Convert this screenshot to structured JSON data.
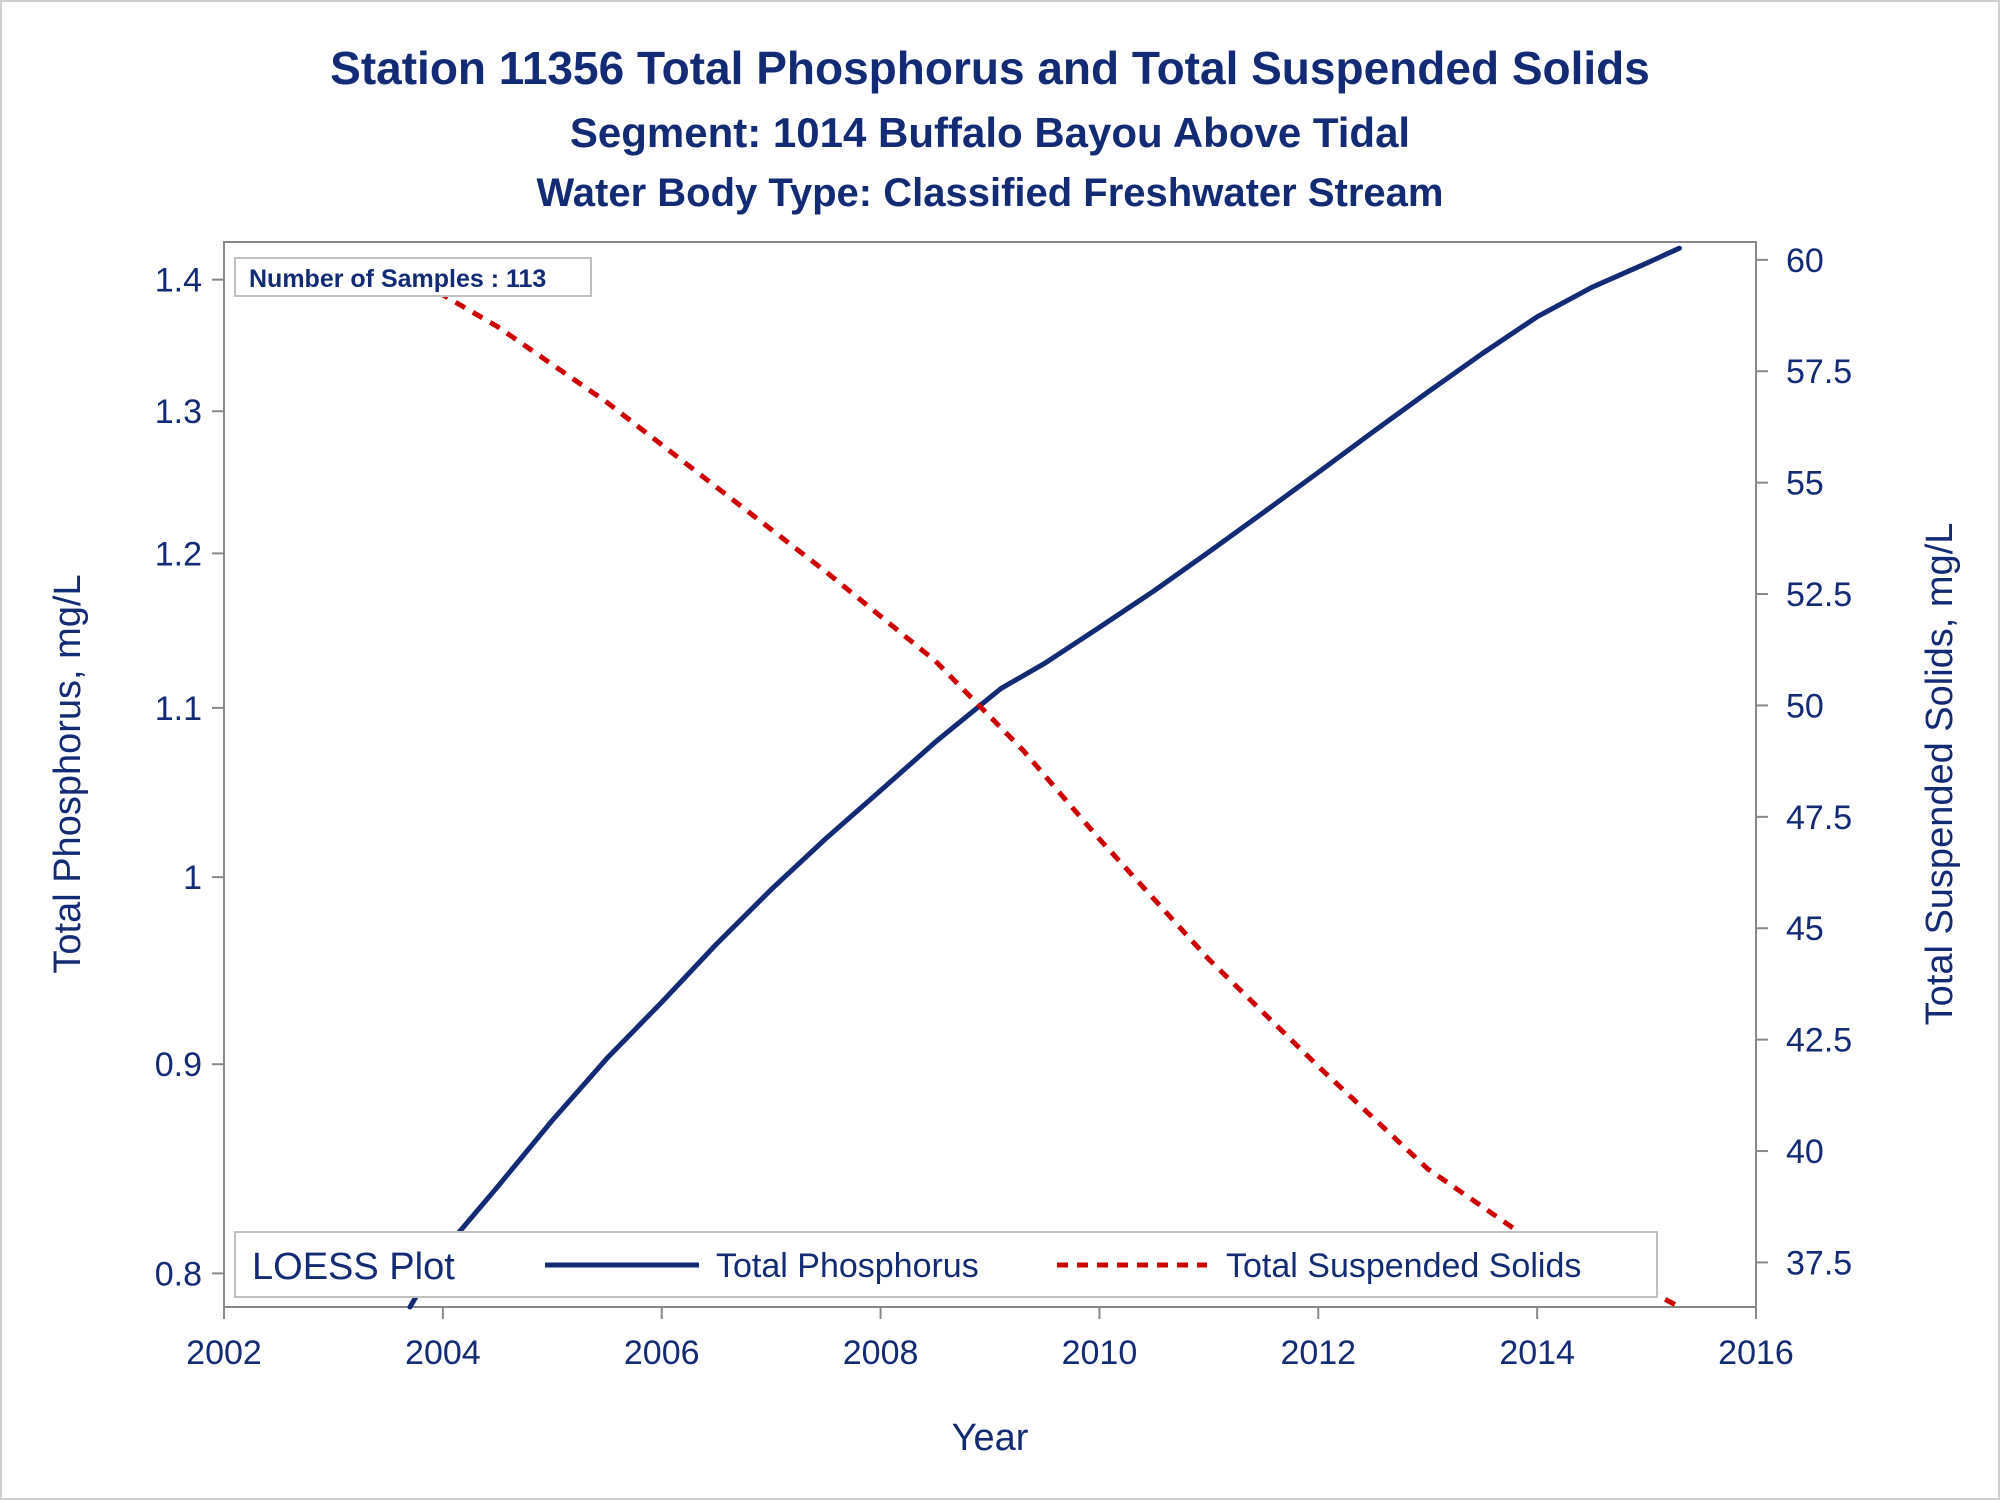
{
  "chart_data": {
    "type": "line",
    "title": "Station 11356  Total Phosphorus and Total Suspended Solids",
    "subtitle": "Segment: 1014  Buffalo Bayou Above Tidal",
    "subtitle2": "Water Body Type: Classified Freshwater Stream",
    "xlabel": "Year",
    "ylabel": "Total Phosphorus, mg/L",
    "y2label": "Total Suspended Solids, mg/L",
    "xlim": [
      2002,
      2016
    ],
    "xticks": [
      2002,
      2004,
      2006,
      2008,
      2010,
      2012,
      2014,
      2016
    ],
    "ylim": [
      0.785,
      1.43
    ],
    "y_scale": "log",
    "yticks": [
      0.8,
      0.9,
      1,
      1.1,
      1.2,
      1.3,
      1.4
    ],
    "y2lim": [
      36.5,
      60.4
    ],
    "y2ticks": [
      37.5,
      40,
      42.5,
      45,
      47.5,
      50,
      52.5,
      55,
      57.5,
      60
    ],
    "inset_text": "Number of Samples : 113",
    "legend_title": "LOESS Plot",
    "legend_position": "bottom-inside",
    "grid": false,
    "series": [
      {
        "name": "Total Phosphorus",
        "axis": "left",
        "color": "#122b74",
        "style": "solid",
        "x": [
          2003.7,
          2004,
          2004.5,
          2005,
          2005.5,
          2006,
          2006.5,
          2007,
          2007.5,
          2008,
          2008.5,
          2009.1,
          2009.5,
          2010,
          2010.5,
          2011,
          2011.5,
          2012,
          2012.5,
          2013,
          2013.5,
          2014,
          2014.5,
          2015,
          2015.3
        ],
        "y": [
          0.785,
          0.81,
          0.84,
          0.872,
          0.903,
          0.932,
          0.963,
          0.993,
          1.022,
          1.05,
          1.079,
          1.112,
          1.128,
          1.151,
          1.175,
          1.201,
          1.228,
          1.256,
          1.285,
          1.314,
          1.343,
          1.371,
          1.394,
          1.413,
          1.425
        ]
      },
      {
        "name": "Total Suspended Solids",
        "axis": "right",
        "color": "#cc0000",
        "style": "dashed",
        "x": [
          2003.8,
          2004.5,
          2005.5,
          2006.5,
          2007.5,
          2008.5,
          2009.3,
          2010,
          2011,
          2012,
          2013,
          2014,
          2015,
          2015.3
        ],
        "y": [
          59.5,
          58.5,
          56.8,
          54.9,
          53.0,
          51.0,
          49.0,
          47.0,
          44.3,
          41.9,
          39.6,
          37.9,
          36.9,
          36.5
        ]
      }
    ]
  },
  "colors": {
    "text": "#122b74",
    "frame": "#d0d0d0",
    "axis": "#888888"
  }
}
